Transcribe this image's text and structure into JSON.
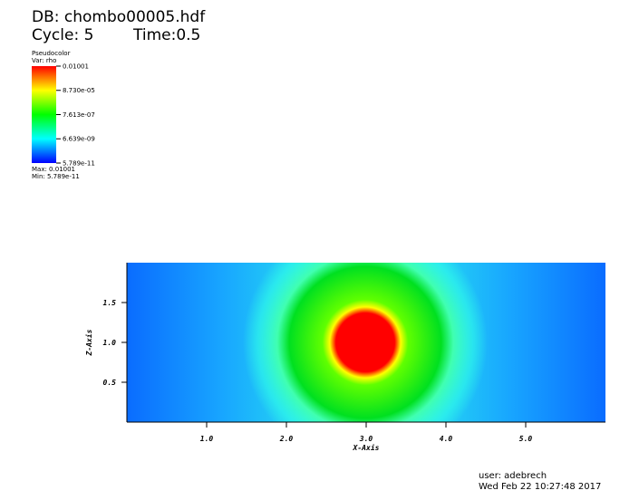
{
  "header": {
    "db": "DB: chombo00005.hdf",
    "cycle": "Cycle: 5",
    "time": "Time:0.5"
  },
  "legend": {
    "title": "Pseudocolor",
    "var": "Var: rho",
    "max": "Max: 0.01001",
    "min": "Min: 5.789e-11"
  },
  "chart_data": {
    "type": "heatmap",
    "xlabel": "X-Axis",
    "ylabel": "Z-Axis",
    "xlim": [
      0,
      6
    ],
    "ylim": [
      0,
      2
    ],
    "xticks": [
      {
        "value": 1,
        "label": "1.0"
      },
      {
        "value": 2,
        "label": "2.0"
      },
      {
        "value": 3,
        "label": "3.0"
      },
      {
        "value": 4,
        "label": "4.0"
      },
      {
        "value": 5,
        "label": "5.0"
      }
    ],
    "yticks": [
      {
        "value": 0.5,
        "label": "0.5"
      },
      {
        "value": 1,
        "label": "1.0"
      },
      {
        "value": 1.5,
        "label": "1.5"
      }
    ],
    "colorbar": {
      "log": true,
      "colors": [
        "#0000ff",
        "#00ffff",
        "#00ff00",
        "#ffff00",
        "#ff0000"
      ],
      "ticks": [
        {
          "value": 0.01001,
          "label": "0.01001"
        },
        {
          "value": 8.73e-05,
          "label": "8.730e-05"
        },
        {
          "value": 7.613e-07,
          "label": "7.613e-07"
        },
        {
          "value": 6.639e-09,
          "label": "6.639e-09"
        },
        {
          "value": 5.789e-11,
          "label": "5.789e-11"
        }
      ]
    }
  },
  "footer": {
    "user": "user: adebrech",
    "date": "Wed Feb 22 10:27:48 2017"
  }
}
